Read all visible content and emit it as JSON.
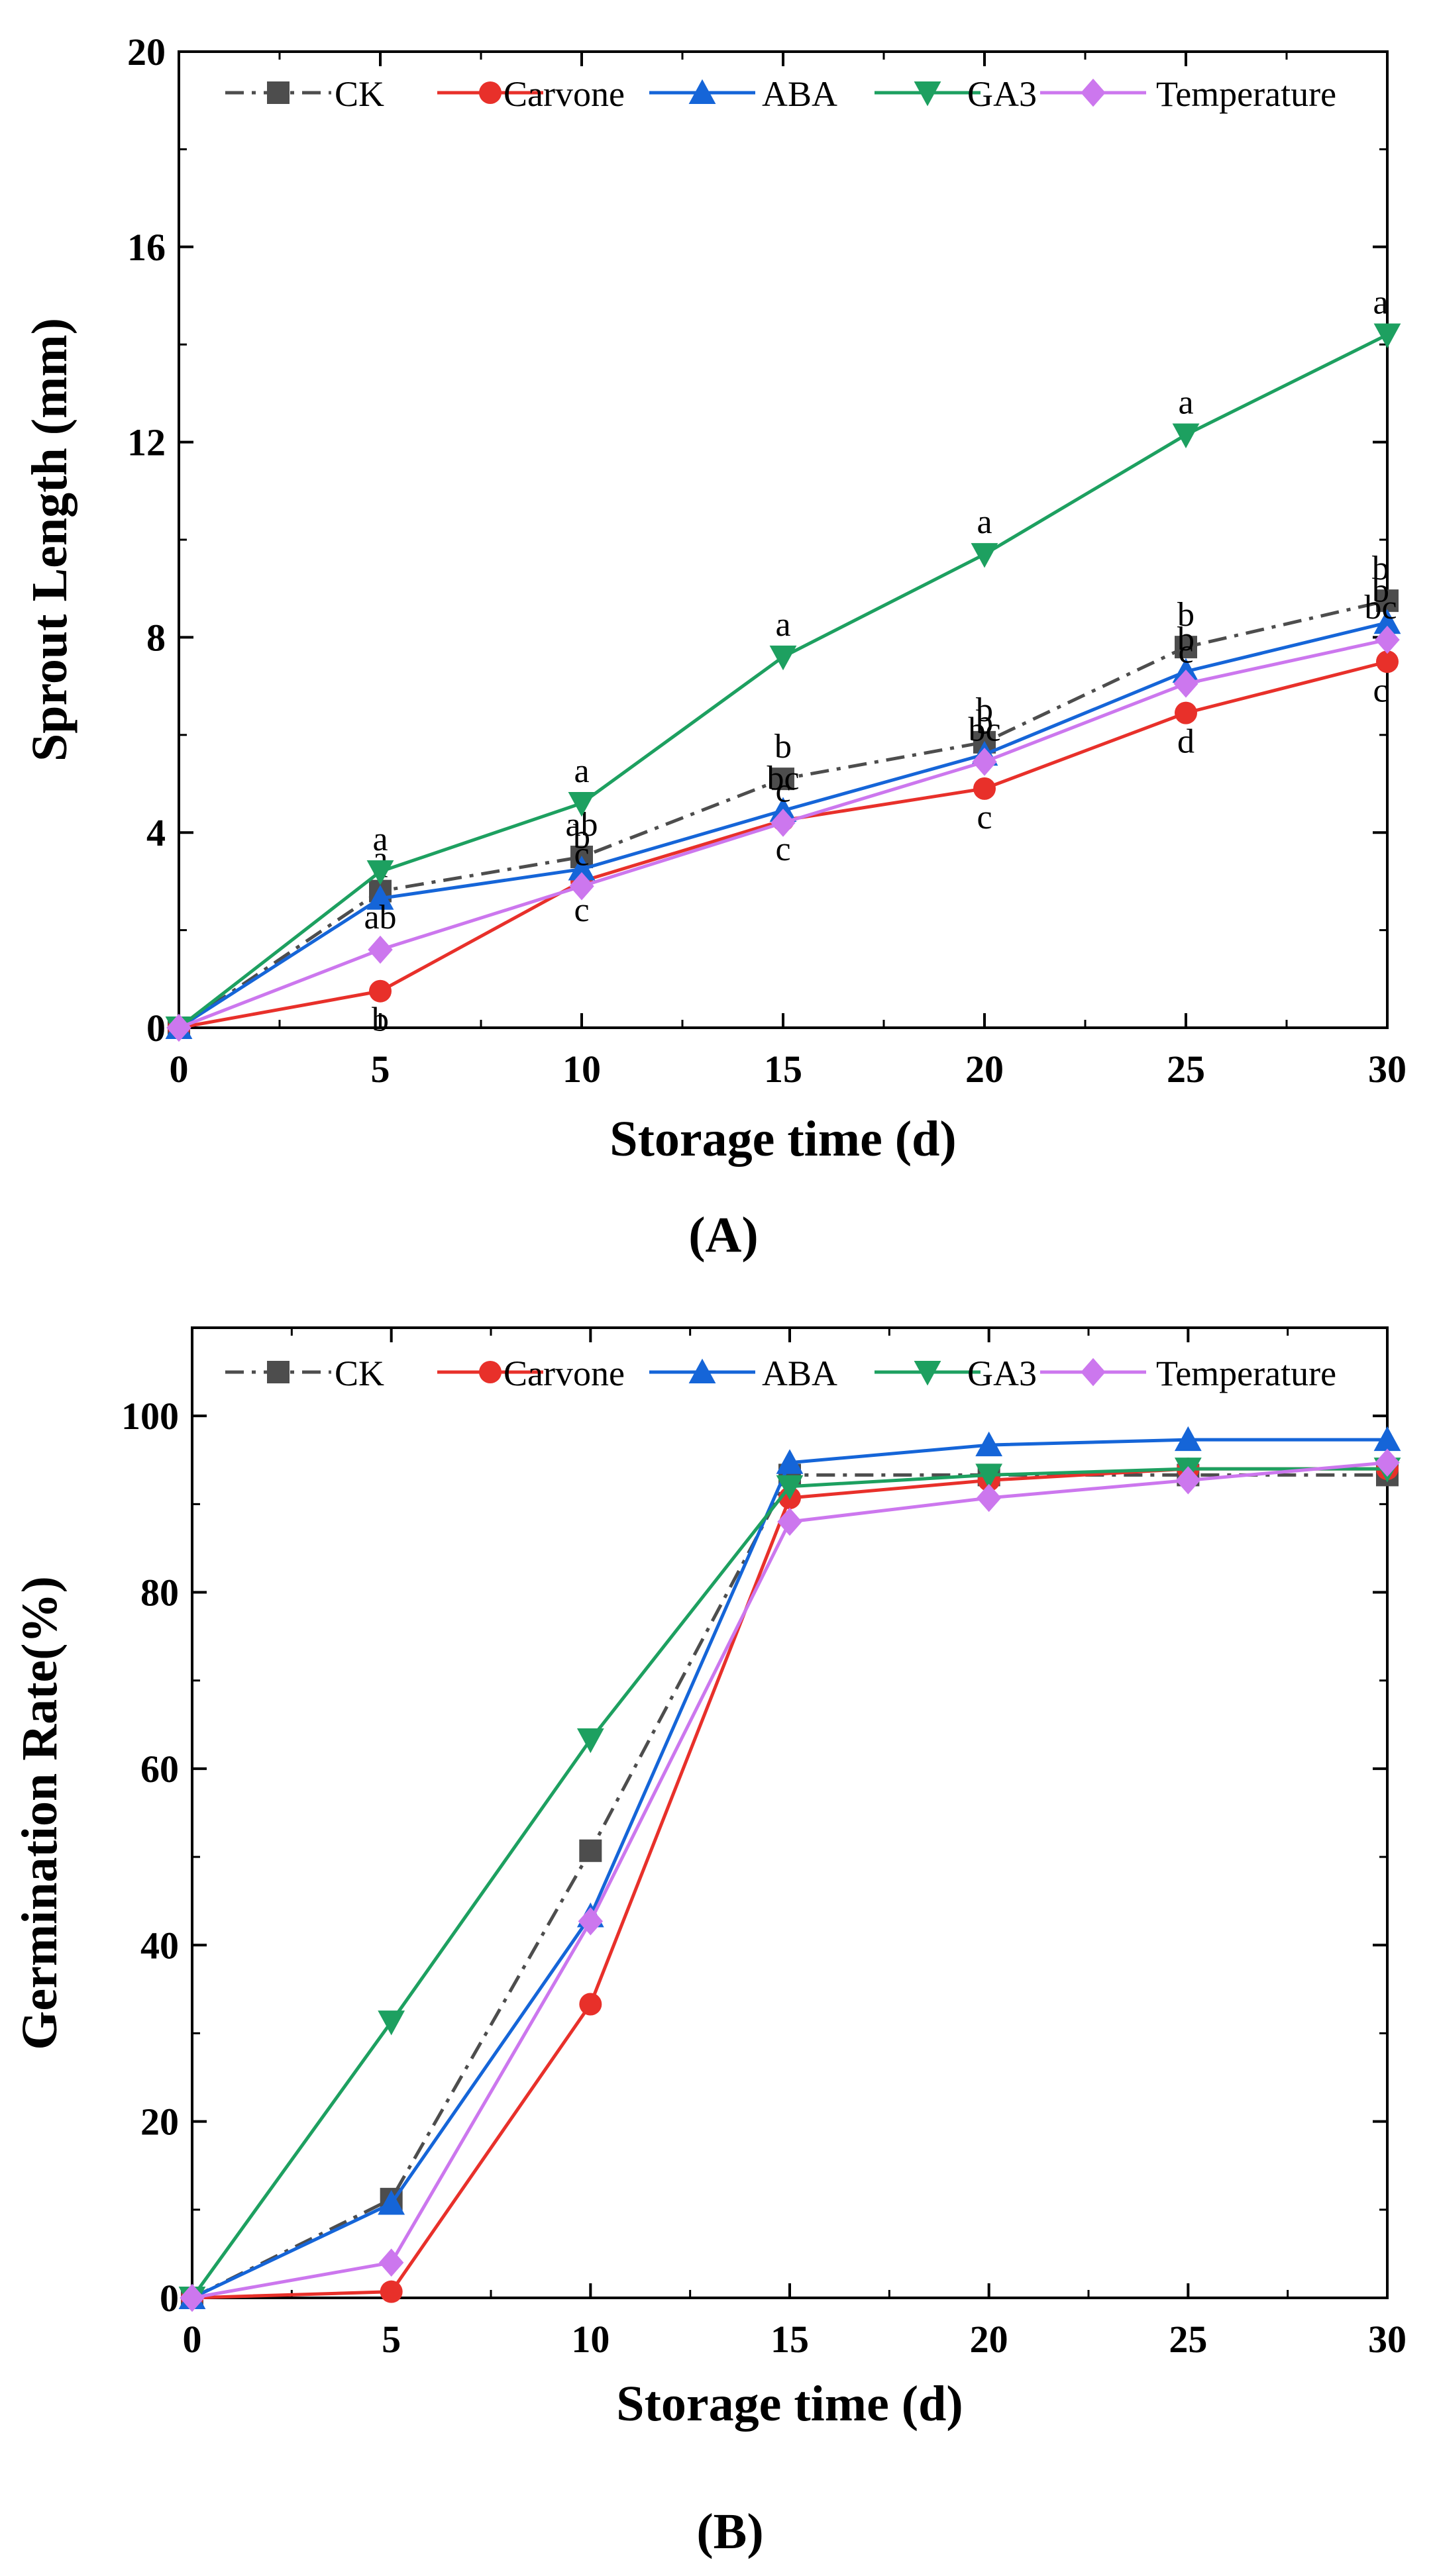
{
  "chart_data": [
    {
      "type": "line",
      "panel_label": "(A)",
      "xlabel": "Storage time (d)",
      "ylabel": "Sprout Length (mm)",
      "xlim": [
        0,
        30
      ],
      "ylim": [
        0,
        20
      ],
      "xticks": [
        0,
        5,
        10,
        15,
        20,
        25,
        30
      ],
      "yticks": [
        0,
        4,
        8,
        12,
        16,
        20
      ],
      "x": [
        0,
        5,
        10,
        15,
        20,
        25,
        30
      ],
      "legend_position": "top",
      "series": [
        {
          "name": "CK",
          "color": "#4d4d4d",
          "marker": "square",
          "dash": "dashdot",
          "values": [
            0,
            2.8,
            3.5,
            5.1,
            5.85,
            7.8,
            8.75
          ],
          "letters": [
            "",
            "a",
            "ab",
            "b",
            "b",
            "b",
            "b"
          ]
        },
        {
          "name": "Carvone",
          "color": "#e8302a",
          "marker": "circle",
          "dash": "solid",
          "values": [
            0,
            0.75,
            3.0,
            4.25,
            4.9,
            6.45,
            7.5
          ],
          "letters": [
            "",
            "b",
            "c",
            "c",
            "c",
            "d",
            "c"
          ]
        },
        {
          "name": "ABA",
          "color": "#1565d8",
          "marker": "triangle-up",
          "dash": "solid",
          "values": [
            0,
            2.65,
            3.25,
            4.45,
            5.6,
            7.3,
            8.3
          ],
          "letters": [
            "",
            "a",
            "b",
            "bc",
            "b",
            "b",
            "b"
          ]
        },
        {
          "name": "GA3",
          "color": "#1da060",
          "marker": "triangle-down",
          "dash": "solid",
          "values": [
            0,
            3.2,
            4.6,
            7.6,
            9.7,
            12.15,
            14.2
          ],
          "letters": [
            "",
            "a",
            "a",
            "a",
            "a",
            "a",
            "a"
          ]
        },
        {
          "name": "Temperature",
          "color": "#cc77ee",
          "marker": "diamond",
          "dash": "solid",
          "values": [
            0,
            1.6,
            2.9,
            4.2,
            5.45,
            7.05,
            7.95
          ],
          "letters": [
            "",
            "ab",
            "c",
            "c",
            "bc",
            "c",
            "bc"
          ]
        }
      ]
    },
    {
      "type": "line",
      "panel_label": "(B)",
      "xlabel": "Storage time (d)",
      "ylabel": "Germination Rate(%)",
      "xlim": [
        0,
        30
      ],
      "ylim": [
        0,
        110
      ],
      "xticks": [
        0,
        5,
        10,
        15,
        20,
        25,
        30
      ],
      "yticks": [
        0,
        20,
        40,
        60,
        80,
        100
      ],
      "x": [
        0,
        5,
        10,
        15,
        20,
        25,
        30
      ],
      "legend_position": "top",
      "series": [
        {
          "name": "CK",
          "color": "#4d4d4d",
          "marker": "square",
          "dash": "dashdot",
          "values": [
            0,
            11.2,
            50.7,
            93.3,
            93.3,
            93.3,
            93.3
          ]
        },
        {
          "name": "Carvone",
          "color": "#e8302a",
          "marker": "circle",
          "dash": "solid",
          "values": [
            0,
            0.7,
            33.3,
            90.7,
            92.7,
            94.0,
            94.0
          ]
        },
        {
          "name": "ABA",
          "color": "#1565d8",
          "marker": "triangle-up",
          "dash": "solid",
          "values": [
            0,
            10.7,
            43.3,
            94.7,
            96.7,
            97.3,
            97.3
          ]
        },
        {
          "name": "GA3",
          "color": "#1da060",
          "marker": "triangle-down",
          "dash": "solid",
          "values": [
            0,
            31.3,
            63.3,
            92.0,
            93.3,
            94.0,
            94.0
          ]
        },
        {
          "name": "Temperature",
          "color": "#cc77ee",
          "marker": "diamond",
          "dash": "solid",
          "values": [
            0,
            4.0,
            42.7,
            88.0,
            90.7,
            92.7,
            94.7
          ]
        }
      ]
    }
  ]
}
